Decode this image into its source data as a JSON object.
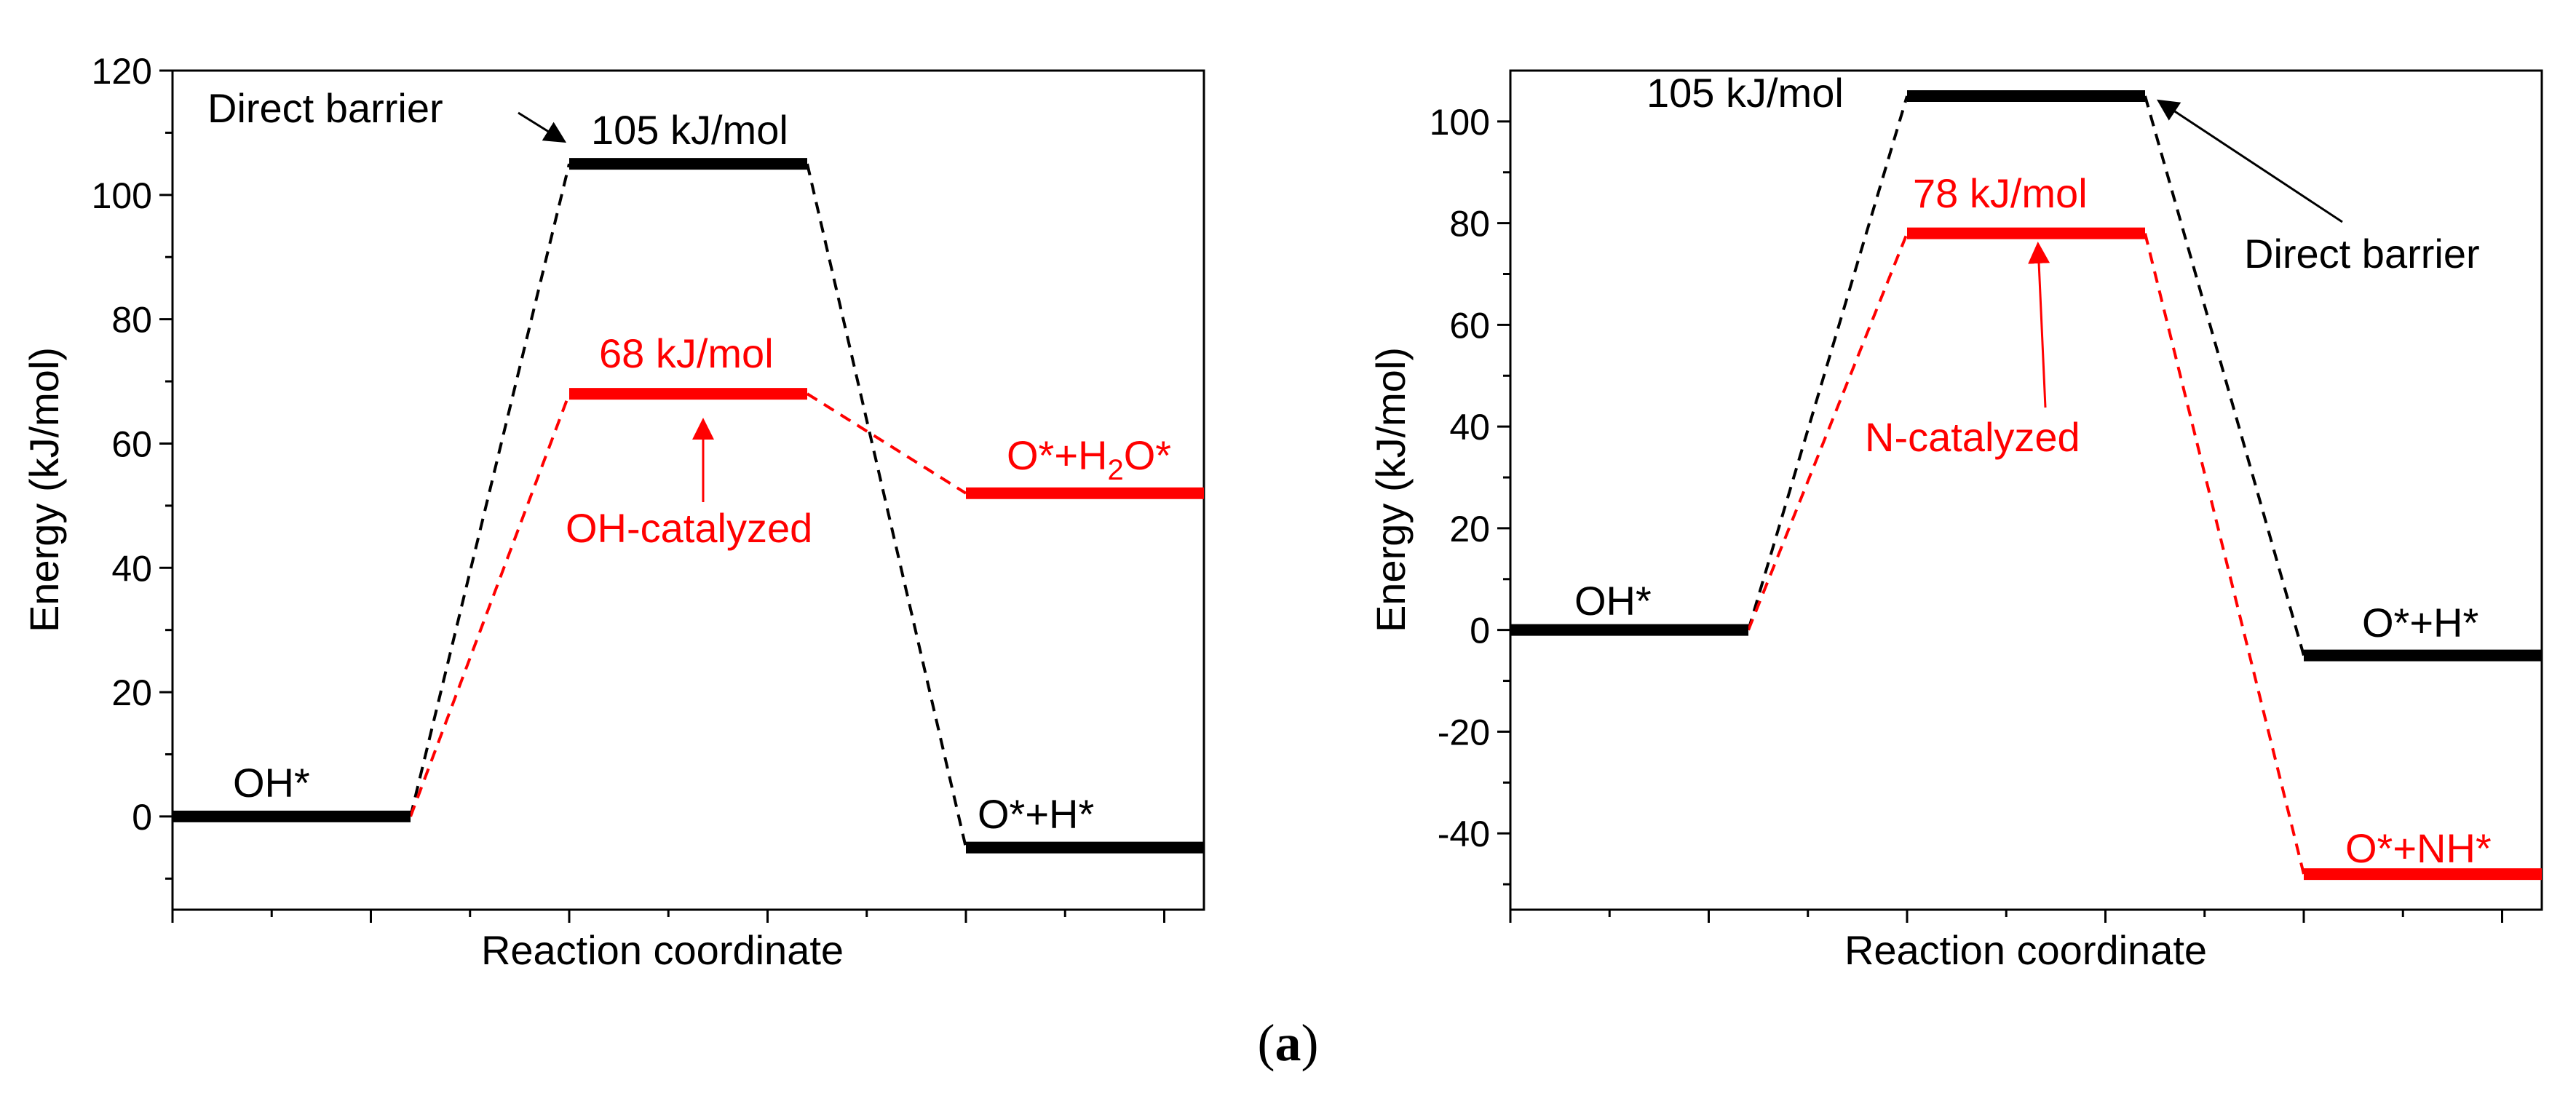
{
  "chart_data": [
    {
      "type": "energy-profile",
      "xlabel": "Reaction coordinate",
      "ylabel": "Energy (kJ/mol)",
      "ylim": [
        -15,
        120
      ],
      "yticks": [
        0,
        20,
        40,
        60,
        80,
        100,
        120
      ],
      "series": [
        {
          "name": "Direct",
          "color": "#000000",
          "levels": [
            {
              "label": "OH*",
              "x": [
                0,
                1.2
              ],
              "y": 0
            },
            {
              "label": "105 kJ/mol",
              "x": [
                2,
                3.2
              ],
              "y": 105
            },
            {
              "label": "O*+H*",
              "x": [
                4,
                5.2
              ],
              "y": -5
            }
          ]
        },
        {
          "name": "OH-catalyzed",
          "color": "#ff0000",
          "levels": [
            {
              "label": "68 kJ/mol",
              "x": [
                2,
                3.2
              ],
              "y": 68
            },
            {
              "label": "O*+H2O*",
              "x": [
                4,
                5.2
              ],
              "y": 52
            }
          ]
        }
      ],
      "annotations": {
        "direct_barrier": "Direct barrier",
        "catalyzed": "OH-catalyzed",
        "start_label": "OH*",
        "barrier_label": "105 kJ/mol",
        "cat_barrier_label": "68 kJ/mol",
        "product_label": "O*+H*",
        "cat_product_label": {
          "pre": "O*+H",
          "sub": "2",
          "post": "O*"
        }
      }
    },
    {
      "type": "energy-profile",
      "xlabel": "Reaction coordinate",
      "ylabel": "Energy (kJ/mol)",
      "ylim": [
        -55,
        110
      ],
      "yticks": [
        -40,
        -20,
        0,
        20,
        40,
        60,
        80,
        100
      ],
      "series": [
        {
          "name": "Direct",
          "color": "#000000",
          "levels": [
            {
              "label": "OH*",
              "x": [
                0,
                1.2
              ],
              "y": 0
            },
            {
              "label": "105 kJ/mol",
              "x": [
                2,
                3.2
              ],
              "y": 105
            },
            {
              "label": "O*+H*",
              "x": [
                4,
                5.2
              ],
              "y": -5
            }
          ]
        },
        {
          "name": "N-catalyzed",
          "color": "#ff0000",
          "levels": [
            {
              "label": "78 kJ/mol",
              "x": [
                2,
                3.2
              ],
              "y": 78
            },
            {
              "label": "O*+NH*",
              "x": [
                4,
                5.2
              ],
              "y": -48
            }
          ]
        }
      ],
      "annotations": {
        "direct_barrier": "Direct barrier",
        "catalyzed": "N-catalyzed",
        "start_label": "OH*",
        "barrier_label": "105 kJ/mol",
        "cat_barrier_label": "78 kJ/mol",
        "product_label": "O*+H*",
        "cat_product_label": "O*+NH*"
      }
    }
  ],
  "caption": {
    "open": "(",
    "letter": "a",
    "close": ")"
  }
}
